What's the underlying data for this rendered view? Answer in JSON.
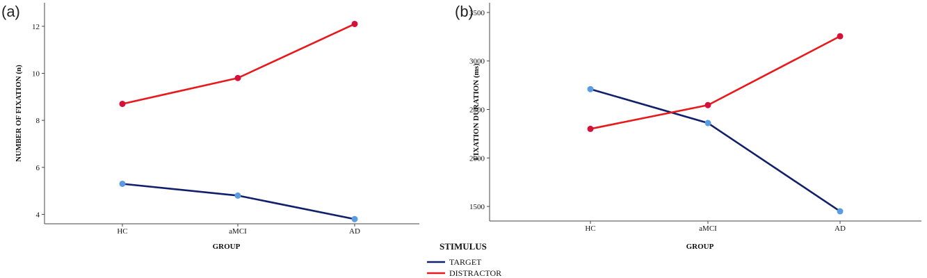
{
  "colors": {
    "target_line": "#10206b",
    "target_marker": "#5b9be0",
    "distractor_line": "#e8191c",
    "distractor_marker": "#d5103a",
    "axis": "#444444"
  },
  "legend": {
    "title": "STIMULUS",
    "items": [
      {
        "label": "TARGET",
        "color": "#10206b"
      },
      {
        "label": "DISTRACTOR",
        "color": "#e8191c"
      }
    ]
  },
  "chart_data": [
    {
      "panel": "(a)",
      "type": "line",
      "categories": [
        "HC",
        "aMCI",
        "AD"
      ],
      "xlabel": "GROUP",
      "ylabel": "NUMBER OF FIXATION (n)",
      "ylim": [
        3.6,
        13.0
      ],
      "yticks": [
        4,
        6,
        8,
        10,
        12
      ],
      "series": [
        {
          "name": "TARGET",
          "values": [
            5.3,
            4.8,
            3.8
          ]
        },
        {
          "name": "DISTRACTOR",
          "values": [
            8.7,
            9.8,
            12.1
          ]
        }
      ]
    },
    {
      "panel": "(b)",
      "type": "line",
      "categories": [
        "HC",
        "aMCI",
        "AD"
      ],
      "xlabel": "GROUP",
      "ylabel": "FIXATION DURATION (ms)",
      "ylim": [
        1350,
        3600
      ],
      "yticks": [
        1500,
        2000,
        2500,
        3000,
        3500
      ],
      "series": [
        {
          "name": "TARGET",
          "values": [
            2710,
            2360,
            1450
          ]
        },
        {
          "name": "DISTRACTOR",
          "values": [
            2300,
            2545,
            3255
          ]
        }
      ]
    }
  ]
}
